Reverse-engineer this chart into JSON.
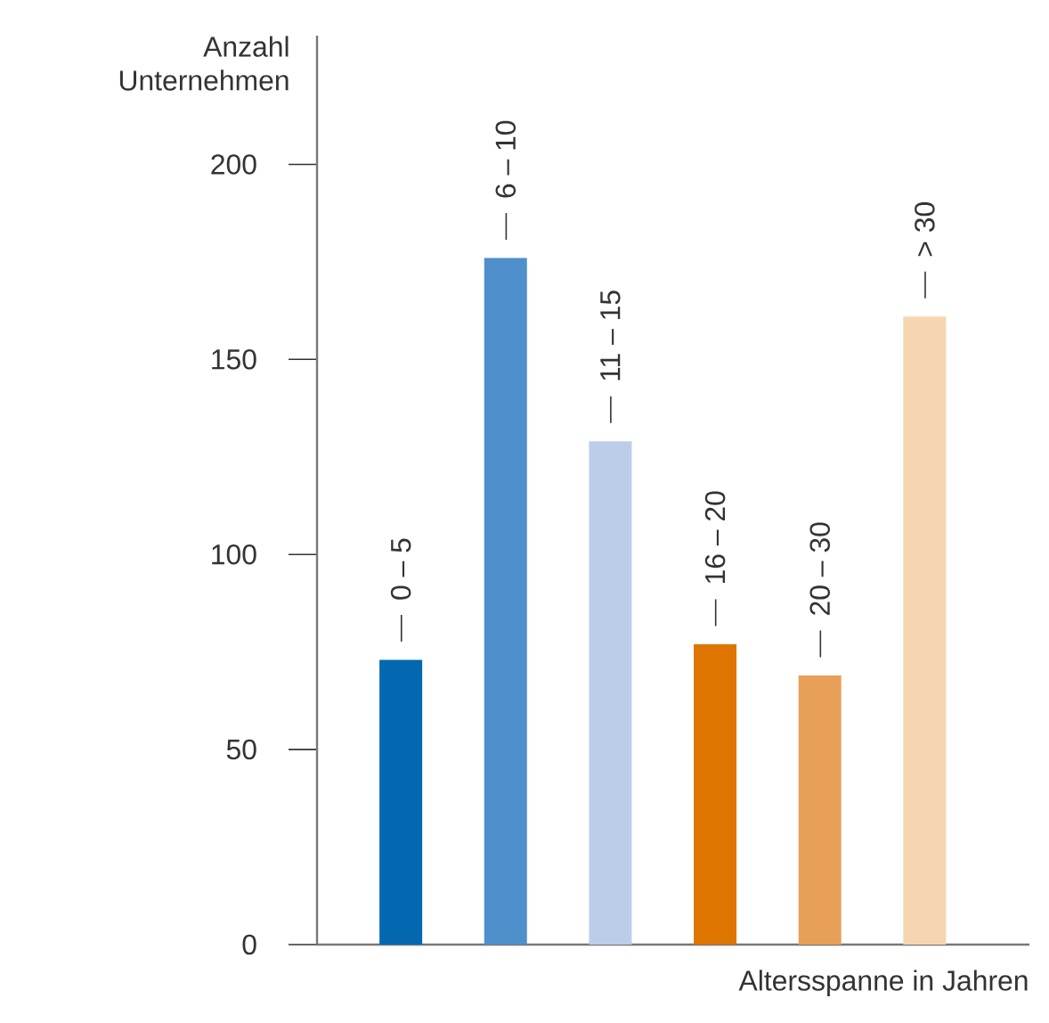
{
  "chart_data": {
    "type": "bar",
    "ylabel": "Anzahl Unternehmen",
    "xlabel": "Altersspanne in Jahren",
    "categories": [
      "0 – 5",
      "6 – 10",
      "11 – 15",
      "16 – 20",
      "20 – 30",
      "> 30"
    ],
    "values": [
      73,
      176,
      129,
      77,
      69,
      161
    ],
    "colors": [
      "#0468b1",
      "#4f8fcc",
      "#bccde9",
      "#dd7500",
      "#e8a058",
      "#f6d5b1"
    ],
    "ylim": [
      0,
      233
    ],
    "yticks": [
      0,
      50,
      100,
      150,
      200
    ],
    "grid": false
  }
}
